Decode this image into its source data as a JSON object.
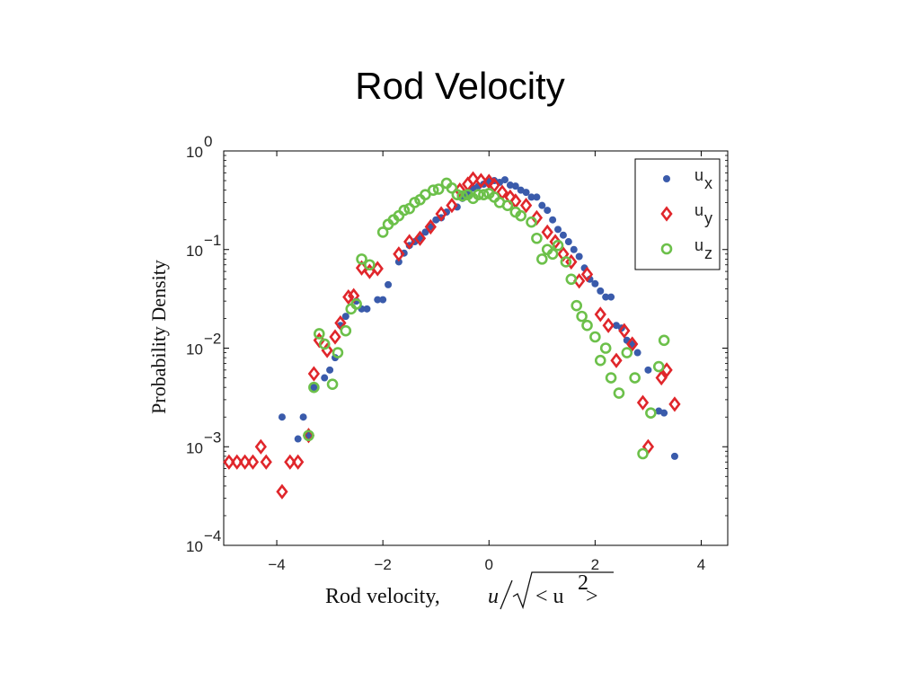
{
  "slide": {
    "title": "Rod Velocity"
  },
  "chart_data": {
    "type": "scatter",
    "title": "",
    "ylabel": "Probability Density",
    "xlabel_prefix": "Rod velocity,",
    "xlabel_math": {
      "numerator": "u",
      "radicand_left": "< u",
      "exponent": "2",
      "radicand_right": " >"
    },
    "xlim": [
      -5,
      4.5
    ],
    "ylim": [
      0.0001,
      1
    ],
    "yscale": "log",
    "x_ticks": [
      {
        "value": -4,
        "label": "−4"
      },
      {
        "value": -2,
        "label": "−2"
      },
      {
        "value": 0,
        "label": "0"
      },
      {
        "value": 2,
        "label": "2"
      },
      {
        "value": 4,
        "label": "4"
      }
    ],
    "y_ticks": [
      {
        "value": 1,
        "base": "10",
        "exp": "0"
      },
      {
        "value": 0.1,
        "base": "10",
        "exp": "−1"
      },
      {
        "value": 0.01,
        "base": "10",
        "exp": "−2"
      },
      {
        "value": 0.001,
        "base": "10",
        "exp": "−3"
      },
      {
        "value": 0.0001,
        "base": "10",
        "exp": "−4"
      }
    ],
    "grid": false,
    "legend": "top-right",
    "series": [
      {
        "name": "u",
        "subscript": "x",
        "marker": "dot",
        "color": "#3a5bab",
        "points": [
          [
            -3.9,
            0.002
          ],
          [
            -3.6,
            0.0012
          ],
          [
            -3.5,
            0.002
          ],
          [
            -3.4,
            0.0013
          ],
          [
            -3.3,
            0.004
          ],
          [
            -3.1,
            0.005
          ],
          [
            -3.0,
            0.006
          ],
          [
            -2.9,
            0.008
          ],
          [
            -2.8,
            0.017
          ],
          [
            -2.7,
            0.021
          ],
          [
            -2.5,
            0.03
          ],
          [
            -2.4,
            0.025
          ],
          [
            -2.3,
            0.025
          ],
          [
            -2.1,
            0.031
          ],
          [
            -2.0,
            0.031
          ],
          [
            -1.9,
            0.044
          ],
          [
            -1.7,
            0.075
          ],
          [
            -1.6,
            0.092
          ],
          [
            -1.5,
            0.11
          ],
          [
            -1.4,
            0.12
          ],
          [
            -1.3,
            0.13
          ],
          [
            -1.2,
            0.15
          ],
          [
            -1.1,
            0.17
          ],
          [
            -1.0,
            0.2
          ],
          [
            -0.9,
            0.21
          ],
          [
            -0.8,
            0.24
          ],
          [
            -0.6,
            0.27
          ],
          [
            -0.5,
            0.33
          ],
          [
            -0.4,
            0.36
          ],
          [
            -0.3,
            0.42
          ],
          [
            -0.2,
            0.44
          ],
          [
            -0.1,
            0.46
          ],
          [
            0.0,
            0.49
          ],
          [
            0.1,
            0.5
          ],
          [
            0.2,
            0.48
          ],
          [
            0.3,
            0.51
          ],
          [
            0.4,
            0.45
          ],
          [
            0.5,
            0.44
          ],
          [
            0.6,
            0.4
          ],
          [
            0.7,
            0.38
          ],
          [
            0.8,
            0.34
          ],
          [
            0.9,
            0.34
          ],
          [
            1.0,
            0.28
          ],
          [
            1.1,
            0.25
          ],
          [
            1.2,
            0.2
          ],
          [
            1.3,
            0.16
          ],
          [
            1.4,
            0.14
          ],
          [
            1.5,
            0.12
          ],
          [
            1.6,
            0.1
          ],
          [
            1.7,
            0.085
          ],
          [
            1.8,
            0.065
          ],
          [
            1.9,
            0.05
          ],
          [
            2.0,
            0.045
          ],
          [
            2.1,
            0.038
          ],
          [
            2.2,
            0.033
          ],
          [
            2.3,
            0.033
          ],
          [
            2.4,
            0.017
          ],
          [
            2.5,
            0.016
          ],
          [
            2.6,
            0.012
          ],
          [
            2.7,
            0.011
          ],
          [
            2.8,
            0.009
          ],
          [
            3.0,
            0.006
          ],
          [
            3.2,
            0.0023
          ],
          [
            3.3,
            0.0022
          ],
          [
            3.5,
            0.0008
          ]
        ]
      },
      {
        "name": "u",
        "subscript": "y",
        "marker": "diamond",
        "color": "#e0262b",
        "points": [
          [
            -4.9,
            0.0007
          ],
          [
            -4.75,
            0.0007
          ],
          [
            -4.6,
            0.0007
          ],
          [
            -4.45,
            0.0007
          ],
          [
            -4.3,
            0.001
          ],
          [
            -4.2,
            0.0007
          ],
          [
            -3.9,
            0.00035
          ],
          [
            -3.75,
            0.0007
          ],
          [
            -3.6,
            0.0007
          ],
          [
            -3.4,
            0.0013
          ],
          [
            -3.3,
            0.0055
          ],
          [
            -3.2,
            0.012
          ],
          [
            -3.05,
            0.0095
          ],
          [
            -2.9,
            0.013
          ],
          [
            -2.8,
            0.018
          ],
          [
            -2.65,
            0.033
          ],
          [
            -2.55,
            0.034
          ],
          [
            -2.4,
            0.065
          ],
          [
            -2.25,
            0.06
          ],
          [
            -2.1,
            0.064
          ],
          [
            -1.7,
            0.09
          ],
          [
            -1.5,
            0.12
          ],
          [
            -1.3,
            0.13
          ],
          [
            -1.1,
            0.17
          ],
          [
            -0.9,
            0.23
          ],
          [
            -0.7,
            0.28
          ],
          [
            -0.55,
            0.4
          ],
          [
            -0.4,
            0.46
          ],
          [
            -0.3,
            0.52
          ],
          [
            -0.15,
            0.5
          ],
          [
            0.0,
            0.49
          ],
          [
            0.1,
            0.45
          ],
          [
            0.25,
            0.38
          ],
          [
            0.4,
            0.34
          ],
          [
            0.5,
            0.31
          ],
          [
            0.7,
            0.28
          ],
          [
            0.9,
            0.21
          ],
          [
            1.1,
            0.15
          ],
          [
            1.25,
            0.12
          ],
          [
            1.4,
            0.09
          ],
          [
            1.55,
            0.075
          ],
          [
            1.7,
            0.048
          ],
          [
            1.85,
            0.056
          ],
          [
            2.1,
            0.022
          ],
          [
            2.25,
            0.017
          ],
          [
            2.4,
            0.0075
          ],
          [
            2.55,
            0.015
          ],
          [
            2.7,
            0.011
          ],
          [
            2.9,
            0.0028
          ],
          [
            3.0,
            0.001
          ],
          [
            3.25,
            0.005
          ],
          [
            3.35,
            0.006
          ],
          [
            3.5,
            0.0027
          ]
        ]
      },
      {
        "name": "u",
        "subscript": "z",
        "marker": "circle",
        "color": "#6cc04a",
        "points": [
          [
            -3.4,
            0.0013
          ],
          [
            -3.3,
            0.004
          ],
          [
            -3.2,
            0.014
          ],
          [
            -3.1,
            0.011
          ],
          [
            -2.95,
            0.0043
          ],
          [
            -2.85,
            0.009
          ],
          [
            -2.7,
            0.015
          ],
          [
            -2.6,
            0.025
          ],
          [
            -2.5,
            0.028
          ],
          [
            -2.4,
            0.08
          ],
          [
            -2.25,
            0.07
          ],
          [
            -2.0,
            0.15
          ],
          [
            -1.9,
            0.18
          ],
          [
            -1.8,
            0.2
          ],
          [
            -1.7,
            0.22
          ],
          [
            -1.6,
            0.25
          ],
          [
            -1.5,
            0.26
          ],
          [
            -1.4,
            0.3
          ],
          [
            -1.3,
            0.32
          ],
          [
            -1.2,
            0.36
          ],
          [
            -1.05,
            0.4
          ],
          [
            -0.95,
            0.41
          ],
          [
            -0.8,
            0.47
          ],
          [
            -0.7,
            0.42
          ],
          [
            -0.6,
            0.36
          ],
          [
            -0.5,
            0.35
          ],
          [
            -0.4,
            0.36
          ],
          [
            -0.3,
            0.33
          ],
          [
            -0.2,
            0.36
          ],
          [
            -0.1,
            0.36
          ],
          [
            0.0,
            0.37
          ],
          [
            0.1,
            0.34
          ],
          [
            0.2,
            0.3
          ],
          [
            0.35,
            0.28
          ],
          [
            0.5,
            0.24
          ],
          [
            0.6,
            0.22
          ],
          [
            0.8,
            0.19
          ],
          [
            0.9,
            0.13
          ],
          [
            1.0,
            0.08
          ],
          [
            1.1,
            0.1
          ],
          [
            1.2,
            0.09
          ],
          [
            1.3,
            0.11
          ],
          [
            1.45,
            0.075
          ],
          [
            1.55,
            0.05
          ],
          [
            1.65,
            0.027
          ],
          [
            1.75,
            0.021
          ],
          [
            1.85,
            0.017
          ],
          [
            2.0,
            0.013
          ],
          [
            2.1,
            0.0075
          ],
          [
            2.2,
            0.01
          ],
          [
            2.3,
            0.005
          ],
          [
            2.45,
            0.0035
          ],
          [
            2.6,
            0.009
          ],
          [
            2.75,
            0.005
          ],
          [
            2.9,
            0.00085
          ],
          [
            3.05,
            0.0022
          ],
          [
            3.2,
            0.0065
          ],
          [
            3.3,
            0.012
          ]
        ]
      }
    ]
  }
}
